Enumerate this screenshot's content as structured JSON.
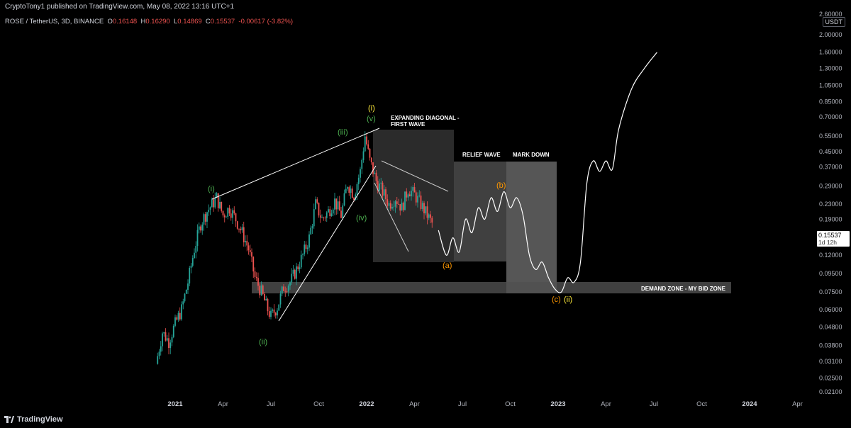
{
  "header": {
    "publisher": "CryptoTony1 published on TradingView.com, May 08, 2022 13:16 UTC+1",
    "symbol": "ROSE / TetherUS, 3D, BINANCE",
    "ohlc": {
      "o_label": "O",
      "o": "0.16148",
      "h_label": "H",
      "h": "0.16290",
      "l_label": "L",
      "l": "0.14869",
      "c_label": "C",
      "c": "0.15537",
      "change": "-0.00617 (-3.82%)"
    },
    "quote": "USDT"
  },
  "current_price": {
    "value": "0.15537",
    "countdown": "1d 12h"
  },
  "footer": {
    "brand": "TradingView"
  },
  "colors": {
    "up": "#26a69a",
    "down": "#ef5350",
    "green_label": "#4caf50",
    "orange_label": "#ff9800",
    "yellow_label": "#ffeb3b"
  },
  "chart_data": {
    "type": "candlestick",
    "scale": "log",
    "price_axis": [
      "2.60000",
      "2.00000",
      "1.60000",
      "1.30000",
      "1.05000",
      "0.85000",
      "0.70000",
      "0.55000",
      "0.45000",
      "0.37000",
      "0.29000",
      "0.23000",
      "0.19000",
      "0.12000",
      "0.09500",
      "0.07500",
      "0.06000",
      "0.04800",
      "0.03800",
      "0.03100",
      "0.02500",
      "0.02100"
    ],
    "price_ticks": [
      2.6,
      2.0,
      1.6,
      1.3,
      1.05,
      0.85,
      0.7,
      0.55,
      0.45,
      0.37,
      0.29,
      0.23,
      0.19,
      0.12,
      0.095,
      0.075,
      0.06,
      0.048,
      0.038,
      0.031,
      0.025,
      0.021
    ],
    "time_axis": [
      {
        "label": "2021",
        "t": 0,
        "bold": true
      },
      {
        "label": "Apr",
        "t": 3
      },
      {
        "label": "Jul",
        "t": 6
      },
      {
        "label": "Oct",
        "t": 9
      },
      {
        "label": "2022",
        "t": 12,
        "bold": true
      },
      {
        "label": "Apr",
        "t": 15
      },
      {
        "label": "Jul",
        "t": 18
      },
      {
        "label": "Oct",
        "t": 21
      },
      {
        "label": "2023",
        "t": 24,
        "bold": true
      },
      {
        "label": "Apr",
        "t": 27
      },
      {
        "label": "Jul",
        "t": 30
      },
      {
        "label": "Oct",
        "t": 33
      },
      {
        "label": "2024",
        "t": 36,
        "bold": true
      },
      {
        "label": "Apr",
        "t": 39
      }
    ],
    "path_points": [
      [
        -1.2,
        0.03
      ],
      [
        -0.8,
        0.045
      ],
      [
        -0.4,
        0.04
      ],
      [
        0.0,
        0.05
      ],
      [
        0.4,
        0.06
      ],
      [
        0.8,
        0.085
      ],
      [
        1.2,
        0.13
      ],
      [
        1.6,
        0.18
      ],
      [
        2.0,
        0.21
      ],
      [
        2.6,
        0.25
      ],
      [
        3.0,
        0.2
      ],
      [
        3.4,
        0.22
      ],
      [
        3.8,
        0.19
      ],
      [
        4.2,
        0.16
      ],
      [
        4.6,
        0.13
      ],
      [
        5.0,
        0.09
      ],
      [
        5.4,
        0.075
      ],
      [
        5.8,
        0.06
      ],
      [
        6.0,
        0.055
      ],
      [
        6.4,
        0.062
      ],
      [
        6.8,
        0.08
      ],
      [
        7.2,
        0.085
      ],
      [
        7.6,
        0.1
      ],
      [
        8.0,
        0.12
      ],
      [
        8.4,
        0.15
      ],
      [
        8.8,
        0.23
      ],
      [
        9.2,
        0.19
      ],
      [
        9.6,
        0.21
      ],
      [
        10.0,
        0.24
      ],
      [
        10.4,
        0.2
      ],
      [
        10.8,
        0.3
      ],
      [
        11.2,
        0.26
      ],
      [
        11.6,
        0.35
      ],
      [
        11.9,
        0.55
      ],
      [
        12.2,
        0.4
      ],
      [
        12.6,
        0.31
      ],
      [
        13.0,
        0.27
      ],
      [
        13.4,
        0.23
      ],
      [
        13.8,
        0.25
      ],
      [
        14.2,
        0.22
      ],
      [
        14.6,
        0.28
      ],
      [
        15.0,
        0.26
      ],
      [
        15.4,
        0.23
      ],
      [
        15.8,
        0.2
      ],
      [
        16.1,
        0.18
      ]
    ],
    "annotations": {
      "waves_green": [
        "(i)",
        "(ii)",
        "(iii)",
        "(iv)",
        "(v)"
      ],
      "waves_orange": [
        "(a)",
        "(b)",
        "(c)"
      ],
      "waves_yellow": [
        "(i)",
        "(ii)"
      ],
      "labels": [
        "EXPANDING DIAGONAL -",
        "FIRST WAVE",
        "RELIEF WAVE",
        "MARK DOWN",
        "DEMAND ZONE - MY BID ZONE"
      ]
    },
    "demand_zone": {
      "low": 0.073,
      "high": 0.085
    },
    "projection": [
      [
        16.5,
        0.165
      ],
      [
        17.0,
        0.12
      ],
      [
        17.4,
        0.15
      ],
      [
        17.8,
        0.125
      ],
      [
        18.2,
        0.19
      ],
      [
        18.6,
        0.16
      ],
      [
        19.0,
        0.22
      ],
      [
        19.4,
        0.19
      ],
      [
        19.8,
        0.25
      ],
      [
        20.2,
        0.21
      ],
      [
        20.6,
        0.27
      ],
      [
        21.0,
        0.22
      ],
      [
        21.4,
        0.25
      ],
      [
        21.8,
        0.2
      ],
      [
        22.2,
        0.12
      ],
      [
        22.6,
        0.1
      ],
      [
        23.0,
        0.11
      ],
      [
        23.4,
        0.09
      ],
      [
        23.8,
        0.078
      ],
      [
        24.2,
        0.075
      ],
      [
        24.6,
        0.09
      ],
      [
        25.0,
        0.085
      ],
      [
        25.4,
        0.11
      ],
      [
        25.8,
        0.3
      ],
      [
        26.2,
        0.4
      ],
      [
        26.6,
        0.35
      ],
      [
        27.0,
        0.4
      ],
      [
        27.4,
        0.36
      ],
      [
        27.8,
        0.6
      ],
      [
        28.6,
        1.0
      ],
      [
        29.4,
        1.3
      ],
      [
        30.2,
        1.6
      ]
    ]
  }
}
